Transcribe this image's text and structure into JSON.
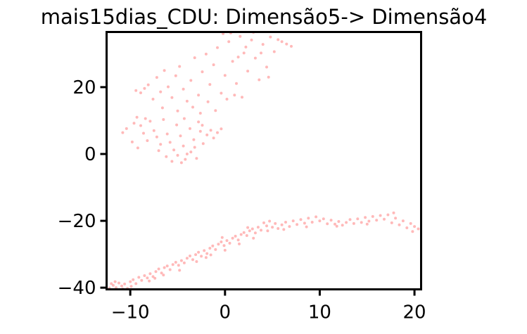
{
  "chart_data": {
    "type": "scatter",
    "title": "mais15dias_CDU: Dimensão5-> Dimensão4",
    "xlabel": "",
    "ylabel": "",
    "xlim": [
      -12.5,
      20.7
    ],
    "ylim": [
      -40.5,
      36.5
    ],
    "xticks": [
      -10,
      0,
      10,
      20
    ],
    "yticks": [
      -40,
      -20,
      0,
      20
    ],
    "xtick_labels": [
      "−10",
      "0",
      "10",
      "20"
    ],
    "ytick_labels": [
      "−40",
      "−20",
      "0",
      "20"
    ],
    "grid": false,
    "legend": "none",
    "marker_color": "#ff7f7f",
    "marker_opacity": 0.55,
    "series": [
      {
        "points": [
          [
            -12.2,
            -40.1
          ],
          [
            -11.8,
            -39.3
          ],
          [
            -11.5,
            -40.0
          ],
          [
            -11.2,
            -38.6
          ],
          [
            -10.9,
            -39.5
          ],
          [
            -10.6,
            -38.9
          ],
          [
            -10.3,
            -40.2
          ],
          [
            -10.0,
            -38.2
          ],
          [
            -9.7,
            -37.6
          ],
          [
            -9.4,
            -38.8
          ],
          [
            -9.1,
            -36.9
          ],
          [
            -8.8,
            -37.8
          ],
          [
            -8.5,
            -36.4
          ],
          [
            -8.2,
            -37.1
          ],
          [
            -7.9,
            -35.8
          ],
          [
            -7.6,
            -36.7
          ],
          [
            -7.3,
            -35.2
          ],
          [
            -7.0,
            -34.4
          ],
          [
            -6.7,
            -35.6
          ],
          [
            -6.4,
            -34.0
          ],
          [
            -6.1,
            -33.5
          ],
          [
            -5.8,
            -34.6
          ],
          [
            -5.5,
            -33.1
          ],
          [
            -5.2,
            -32.4
          ],
          [
            -4.9,
            -33.3
          ],
          [
            -4.6,
            -31.9
          ],
          [
            -4.3,
            -32.6
          ],
          [
            -4.0,
            -31.2
          ],
          [
            -3.7,
            -30.5
          ],
          [
            -3.4,
            -31.6
          ],
          [
            -3.1,
            -30.1
          ],
          [
            -2.8,
            -29.4
          ],
          [
            -2.5,
            -30.6
          ],
          [
            -2.2,
            -28.9
          ],
          [
            -1.9,
            -29.8
          ],
          [
            -1.6,
            -28.2
          ],
          [
            -1.3,
            -27.5
          ],
          [
            -1.0,
            -28.6
          ],
          [
            -0.7,
            -27.0
          ],
          [
            -0.4,
            -26.3
          ],
          [
            -0.1,
            -27.4
          ],
          [
            0.2,
            -25.9
          ],
          [
            0.5,
            -26.7
          ],
          [
            0.8,
            -25.2
          ],
          [
            1.1,
            -24.6
          ],
          [
            1.4,
            -25.7
          ],
          [
            1.7,
            -24.1
          ],
          [
            2.0,
            -23.5
          ],
          [
            2.3,
            -24.4
          ],
          [
            2.6,
            -23.0
          ],
          [
            2.9,
            -22.4
          ],
          [
            3.2,
            -23.6
          ],
          [
            3.5,
            -21.9
          ],
          [
            3.8,
            -22.8
          ],
          [
            4.1,
            -20.6
          ],
          [
            4.4,
            -21.5
          ],
          [
            4.7,
            -20.1
          ],
          [
            5.0,
            -21.9
          ],
          [
            5.3,
            -20.8
          ],
          [
            5.6,
            -22.3
          ],
          [
            6.0,
            -21.2
          ],
          [
            6.4,
            -20.4
          ],
          [
            6.8,
            -21.7
          ],
          [
            7.2,
            -20.0
          ],
          [
            7.6,
            -21.1
          ],
          [
            8.0,
            -19.6
          ],
          [
            8.4,
            -20.7
          ],
          [
            8.8,
            -19.2
          ],
          [
            9.2,
            -20.4
          ],
          [
            9.6,
            -18.8
          ],
          [
            10.0,
            -20.0
          ],
          [
            10.4,
            -19.4
          ],
          [
            10.8,
            -20.9
          ],
          [
            11.2,
            -19.8
          ],
          [
            11.6,
            -21.0
          ],
          [
            12.0,
            -20.2
          ],
          [
            12.4,
            -21.3
          ],
          [
            12.8,
            -20.5
          ],
          [
            13.2,
            -19.6
          ],
          [
            13.6,
            -20.8
          ],
          [
            14.0,
            -19.4
          ],
          [
            14.4,
            -20.5
          ],
          [
            14.8,
            -19.0
          ],
          [
            15.2,
            -20.1
          ],
          [
            15.6,
            -18.7
          ],
          [
            16.0,
            -19.8
          ],
          [
            16.4,
            -18.4
          ],
          [
            16.8,
            -19.5
          ],
          [
            17.2,
            -18.2
          ],
          [
            17.6,
            -20.6
          ],
          [
            18.0,
            -19.2
          ],
          [
            18.4,
            -21.2
          ],
          [
            18.8,
            -20.0
          ],
          [
            19.2,
            -22.1
          ],
          [
            19.6,
            -20.8
          ],
          [
            20.0,
            -21.7
          ],
          [
            20.4,
            -22.4
          ],
          [
            -11.6,
            -38.2
          ],
          [
            -9.9,
            -39.6
          ],
          [
            -8.0,
            -38.0
          ],
          [
            -6.5,
            -36.2
          ],
          [
            -4.8,
            -34.8
          ],
          [
            -3.0,
            -32.2
          ],
          [
            -1.5,
            -30.2
          ],
          [
            0.0,
            -28.8
          ],
          [
            1.5,
            -26.9
          ],
          [
            3.0,
            -25.2
          ],
          [
            4.5,
            -23.0
          ],
          [
            -12.0,
            -38.8
          ],
          [
            -10.8,
            -40.4
          ],
          [
            -0.3,
            -25.0
          ],
          [
            2.4,
            -22.0
          ],
          [
            6.2,
            -22.6
          ],
          [
            8.6,
            -21.8
          ],
          [
            11.8,
            -21.6
          ],
          [
            15.0,
            -21.0
          ],
          [
            17.8,
            -17.6
          ],
          [
            19.8,
            -23.2
          ],
          [
            -7.4,
            -37.2
          ],
          [
            -2.0,
            -31.0
          ],
          [
            -9.3,
            11.0
          ],
          [
            -8.9,
            8.5
          ],
          [
            -8.6,
            6.2
          ],
          [
            -8.2,
            4.0
          ],
          [
            -7.9,
            9.8
          ],
          [
            -7.5,
            7.0
          ],
          [
            -7.2,
            5.1
          ],
          [
            -6.8,
            2.9
          ],
          [
            -6.5,
            10.3
          ],
          [
            -6.1,
            6.0
          ],
          [
            -5.8,
            3.5
          ],
          [
            -5.4,
            1.2
          ],
          [
            -5.1,
            8.7
          ],
          [
            -4.7,
            5.4
          ],
          [
            -4.4,
            2.4
          ],
          [
            -4.0,
            0.0
          ],
          [
            -3.7,
            7.6
          ],
          [
            -3.3,
            4.3
          ],
          [
            -3.0,
            -1.3
          ],
          [
            -2.6,
            6.8
          ],
          [
            -2.3,
            3.1
          ],
          [
            -1.9,
            5.7
          ],
          [
            -1.5,
            7.1
          ],
          [
            -1.2,
            4.8
          ],
          [
            -0.8,
            6.4
          ],
          [
            -0.4,
            7.5
          ],
          [
            -10.8,
            6.4
          ],
          [
            -9.8,
            3.6
          ],
          [
            -9.2,
            1.8
          ],
          [
            -8.4,
            10.6
          ],
          [
            -7.0,
            1.0
          ],
          [
            -6.2,
            -0.8
          ],
          [
            -5.6,
            -2.2
          ],
          [
            -5.0,
            -0.4
          ],
          [
            -4.6,
            -2.6
          ],
          [
            -4.2,
            -1.6
          ],
          [
            -3.6,
            0.6
          ],
          [
            -3.2,
            2.0
          ],
          [
            -2.8,
            9.6
          ],
          [
            -2.4,
            8.6
          ],
          [
            -9.4,
            19.0
          ],
          [
            -8.9,
            18.3
          ],
          [
            -8.1,
            20.7
          ],
          [
            -7.6,
            16.4
          ],
          [
            -7.2,
            22.9
          ],
          [
            -6.8,
            18.6
          ],
          [
            -6.4,
            25.0
          ],
          [
            -6.0,
            20.1
          ],
          [
            -5.6,
            16.9
          ],
          [
            -5.2,
            23.4
          ],
          [
            -4.8,
            26.2
          ],
          [
            -4.4,
            19.4
          ],
          [
            -4.0,
            15.8
          ],
          [
            -3.6,
            22.0
          ],
          [
            -3.2,
            28.8
          ],
          [
            -2.8,
            17.6
          ],
          [
            -2.4,
            24.6
          ],
          [
            -2.0,
            29.9
          ],
          [
            -1.6,
            20.8
          ],
          [
            -1.2,
            26.7
          ],
          [
            -0.8,
            31.8
          ],
          [
            -0.4,
            18.2
          ],
          [
            0.0,
            23.5
          ],
          [
            0.4,
            33.6
          ],
          [
            0.8,
            27.7
          ],
          [
            1.2,
            21.1
          ],
          [
            1.6,
            35.2
          ],
          [
            2.0,
            30.2
          ],
          [
            2.4,
            24.8
          ],
          [
            2.8,
            34.1
          ],
          [
            3.2,
            28.7
          ],
          [
            3.6,
            22.2
          ],
          [
            4.0,
            32.8
          ],
          [
            4.4,
            26.0
          ],
          [
            4.8,
            35.0
          ],
          [
            5.2,
            30.6
          ],
          [
            5.6,
            34.2
          ],
          [
            6.0,
            33.6
          ],
          [
            6.5,
            32.9
          ],
          [
            7.0,
            32.2
          ],
          [
            -5.0,
            12.9
          ],
          [
            -4.3,
            10.6
          ],
          [
            -3.4,
            14.0
          ],
          [
            -2.6,
            12.2
          ],
          [
            -1.8,
            15.6
          ],
          [
            -1.0,
            13.0
          ],
          [
            0.2,
            16.4
          ],
          [
            1.0,
            17.6
          ],
          [
            1.8,
            17.0
          ],
          [
            -0.2,
            36.0
          ],
          [
            0.6,
            36.2
          ],
          [
            1.4,
            29.0
          ],
          [
            2.2,
            32.0
          ],
          [
            3.0,
            36.4
          ],
          [
            3.8,
            30.2
          ],
          [
            4.6,
            23.0
          ],
          [
            -6.6,
            13.8
          ],
          [
            -8.5,
            19.6
          ],
          [
            -9.6,
            9.2
          ],
          [
            -10.4,
            7.6
          ]
        ]
      }
    ]
  }
}
